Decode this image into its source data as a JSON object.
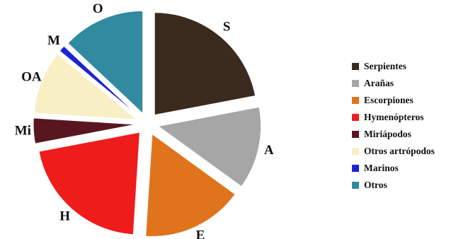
{
  "chart_data": {
    "type": "pie",
    "exploded": true,
    "slices": [
      {
        "label": "S",
        "name": "Serpientes",
        "value": 22,
        "color": "#3b2a1e"
      },
      {
        "label": "A",
        "name": "Arañas",
        "value": 13,
        "color": "#a6a6a6"
      },
      {
        "label": "E",
        "name": "Escorpiones",
        "value": 16,
        "color": "#e0741c"
      },
      {
        "label": "H",
        "name": "Hymenópteros",
        "value": 21,
        "color": "#ef1c1c"
      },
      {
        "label": "Mi",
        "name": "Miriápodos",
        "value": 4,
        "color": "#5a1620"
      },
      {
        "label": "OA",
        "name": "Otros artrópodos",
        "value": 10,
        "color": "#f8efc4"
      },
      {
        "label": "M",
        "name": "Marinos",
        "value": 1,
        "color": "#1a23d6"
      },
      {
        "label": "O",
        "name": "Otros",
        "value": 13,
        "color": "#318aa0"
      }
    ],
    "legend_position": "right"
  }
}
